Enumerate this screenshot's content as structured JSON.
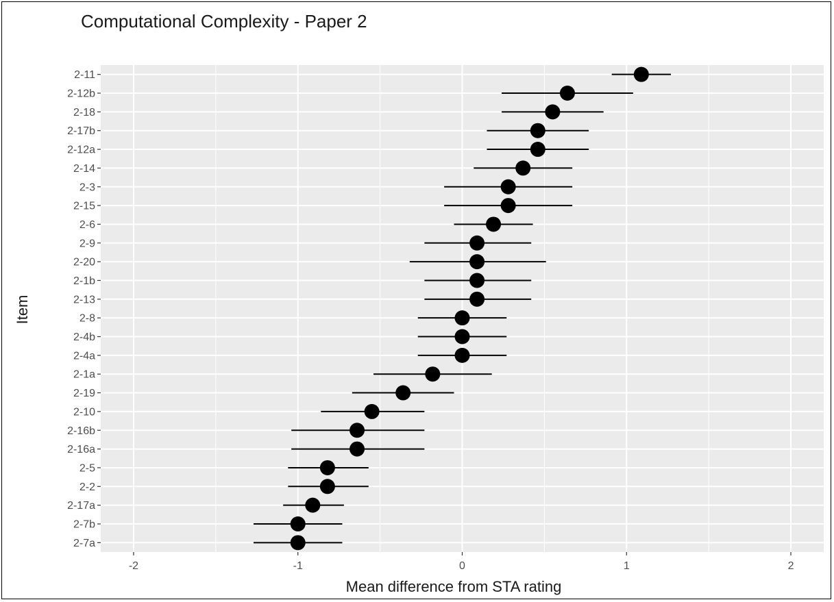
{
  "chart_data": {
    "type": "scatter",
    "subtype": "point-range",
    "title": "Computational Complexity - Paper 2",
    "xlabel": "Mean difference from STA rating",
    "ylabel": "Item",
    "xlim": [
      -2.2,
      2.2
    ],
    "xticks": [
      -2,
      -1,
      0,
      1,
      2
    ],
    "xtick_labels": [
      "-2",
      "-1",
      "0",
      "1",
      "2"
    ],
    "grid": true,
    "background": "#ebebeb",
    "gridline_color": "#ffffff",
    "point_color": "#000000",
    "items": [
      {
        "label": "2-11",
        "mean": 1.09,
        "lower": 0.91,
        "upper": 1.27
      },
      {
        "label": "2-12b",
        "mean": 0.64,
        "lower": 0.24,
        "upper": 1.04
      },
      {
        "label": "2-18",
        "mean": 0.55,
        "lower": 0.24,
        "upper": 0.86
      },
      {
        "label": "2-17b",
        "mean": 0.46,
        "lower": 0.15,
        "upper": 0.77
      },
      {
        "label": "2-12a",
        "mean": 0.46,
        "lower": 0.15,
        "upper": 0.77
      },
      {
        "label": "2-14",
        "mean": 0.37,
        "lower": 0.07,
        "upper": 0.67
      },
      {
        "label": "2-3",
        "mean": 0.28,
        "lower": -0.11,
        "upper": 0.67
      },
      {
        "label": "2-15",
        "mean": 0.28,
        "lower": -0.11,
        "upper": 0.67
      },
      {
        "label": "2-6",
        "mean": 0.19,
        "lower": -0.05,
        "upper": 0.43
      },
      {
        "label": "2-9",
        "mean": 0.09,
        "lower": -0.23,
        "upper": 0.42
      },
      {
        "label": "2-20",
        "mean": 0.09,
        "lower": -0.32,
        "upper": 0.51
      },
      {
        "label": "2-1b",
        "mean": 0.09,
        "lower": -0.23,
        "upper": 0.42
      },
      {
        "label": "2-13",
        "mean": 0.09,
        "lower": -0.23,
        "upper": 0.42
      },
      {
        "label": "2-8",
        "mean": 0.0,
        "lower": -0.27,
        "upper": 0.27
      },
      {
        "label": "2-4b",
        "mean": 0.0,
        "lower": -0.27,
        "upper": 0.27
      },
      {
        "label": "2-4a",
        "mean": 0.0,
        "lower": -0.27,
        "upper": 0.27
      },
      {
        "label": "2-1a",
        "mean": -0.18,
        "lower": -0.54,
        "upper": 0.18
      },
      {
        "label": "2-19",
        "mean": -0.36,
        "lower": -0.67,
        "upper": -0.05
      },
      {
        "label": "2-10",
        "mean": -0.55,
        "lower": -0.86,
        "upper": -0.23
      },
      {
        "label": "2-16b",
        "mean": -0.64,
        "lower": -1.04,
        "upper": -0.23
      },
      {
        "label": "2-16a",
        "mean": -0.64,
        "lower": -1.04,
        "upper": -0.23
      },
      {
        "label": "2-5",
        "mean": -0.82,
        "lower": -1.06,
        "upper": -0.57
      },
      {
        "label": "2-2",
        "mean": -0.82,
        "lower": -1.06,
        "upper": -0.57
      },
      {
        "label": "2-17a",
        "mean": -0.91,
        "lower": -1.09,
        "upper": -0.72
      },
      {
        "label": "2-7b",
        "mean": -1.0,
        "lower": -1.27,
        "upper": -0.73
      },
      {
        "label": "2-7a",
        "mean": -1.0,
        "lower": -1.27,
        "upper": -0.73
      }
    ]
  }
}
